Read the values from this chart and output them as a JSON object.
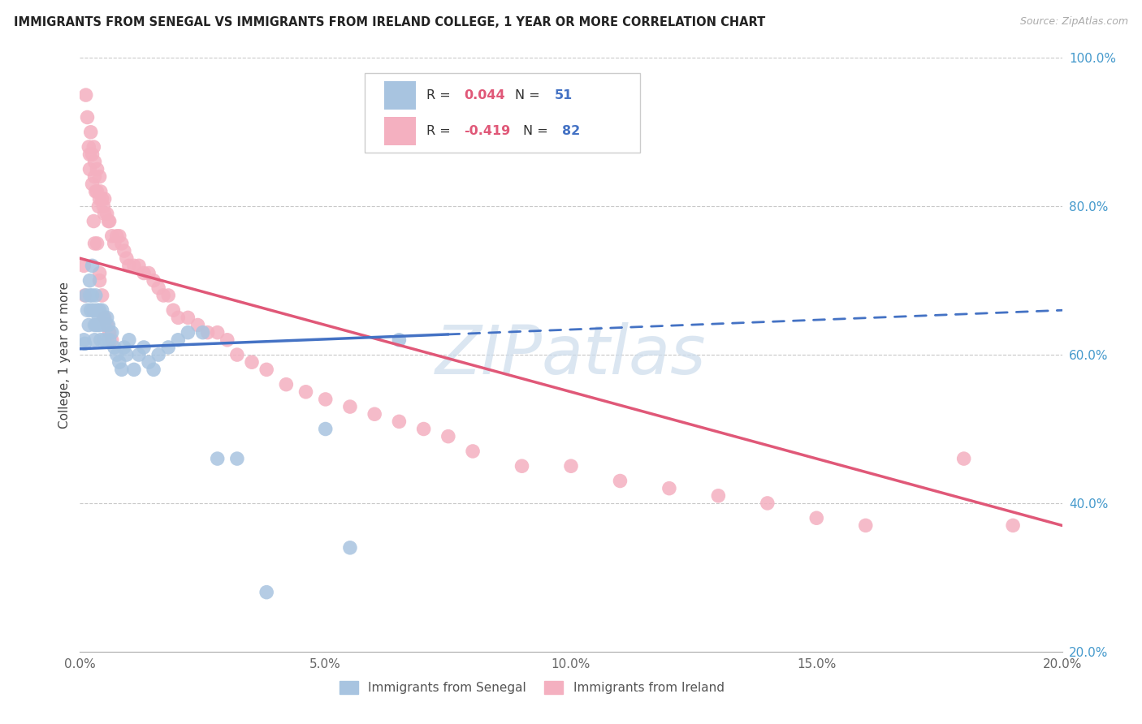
{
  "title": "IMMIGRANTS FROM SENEGAL VS IMMIGRANTS FROM IRELAND COLLEGE, 1 YEAR OR MORE CORRELATION CHART",
  "source": "Source: ZipAtlas.com",
  "ylabel": "College, 1 year or more",
  "xmin": 0.0,
  "xmax": 0.2,
  "ymin": 0.2,
  "ymax": 1.0,
  "x_ticks": [
    0.0,
    0.025,
    0.05,
    0.075,
    0.1,
    0.125,
    0.15,
    0.175,
    0.2
  ],
  "x_tick_labels": [
    "0.0%",
    "",
    "5.0%",
    "",
    "10.0%",
    "",
    "15.0%",
    "",
    "20.0%"
  ],
  "y_ticks_right": [
    0.2,
    0.4,
    0.6,
    0.8,
    1.0
  ],
  "y_tick_labels_right": [
    "20.0%",
    "40.0%",
    "60.0%",
    "80.0%",
    "100.0%"
  ],
  "legend_bottom_senegal": "Immigrants from Senegal",
  "legend_bottom_ireland": "Immigrants from Ireland",
  "senegal_color": "#a8c4e0",
  "ireland_color": "#f4b0c0",
  "senegal_line_color": "#4472c4",
  "ireland_line_color": "#e05878",
  "r_value_color": "#e05878",
  "n_value_color": "#4472c4",
  "watermark": "ZIPatlas",
  "watermark_color": "#ccdcec",
  "senegal_R": 0.044,
  "senegal_N": 51,
  "ireland_R": -0.419,
  "ireland_N": 82,
  "senegal_x": [
    0.0008,
    0.001,
    0.0012,
    0.0015,
    0.0018,
    0.002,
    0.002,
    0.0022,
    0.0025,
    0.0025,
    0.0028,
    0.003,
    0.003,
    0.0032,
    0.0035,
    0.0035,
    0.0038,
    0.004,
    0.004,
    0.0042,
    0.0045,
    0.0048,
    0.005,
    0.005,
    0.0055,
    0.0058,
    0.006,
    0.0065,
    0.007,
    0.0075,
    0.008,
    0.0085,
    0.009,
    0.0095,
    0.01,
    0.011,
    0.012,
    0.013,
    0.014,
    0.015,
    0.016,
    0.018,
    0.02,
    0.022,
    0.025,
    0.028,
    0.032,
    0.038,
    0.05,
    0.055,
    0.065
  ],
  "senegal_y": [
    0.62,
    0.615,
    0.68,
    0.66,
    0.64,
    0.7,
    0.68,
    0.66,
    0.72,
    0.68,
    0.66,
    0.64,
    0.62,
    0.68,
    0.66,
    0.64,
    0.65,
    0.66,
    0.64,
    0.62,
    0.66,
    0.65,
    0.64,
    0.62,
    0.65,
    0.64,
    0.62,
    0.63,
    0.61,
    0.6,
    0.59,
    0.58,
    0.61,
    0.6,
    0.62,
    0.58,
    0.6,
    0.61,
    0.59,
    0.58,
    0.6,
    0.61,
    0.62,
    0.63,
    0.63,
    0.46,
    0.46,
    0.28,
    0.5,
    0.34,
    0.62
  ],
  "ireland_x": [
    0.0008,
    0.001,
    0.0012,
    0.0015,
    0.0018,
    0.002,
    0.002,
    0.0022,
    0.0025,
    0.0025,
    0.0028,
    0.003,
    0.003,
    0.0032,
    0.0035,
    0.0035,
    0.0038,
    0.004,
    0.004,
    0.0042,
    0.0045,
    0.0048,
    0.005,
    0.005,
    0.0055,
    0.0058,
    0.006,
    0.0065,
    0.007,
    0.0075,
    0.008,
    0.0085,
    0.009,
    0.0095,
    0.01,
    0.011,
    0.012,
    0.013,
    0.014,
    0.015,
    0.016,
    0.017,
    0.018,
    0.019,
    0.02,
    0.022,
    0.024,
    0.026,
    0.028,
    0.03,
    0.032,
    0.035,
    0.038,
    0.042,
    0.046,
    0.05,
    0.055,
    0.06,
    0.065,
    0.07,
    0.075,
    0.08,
    0.09,
    0.1,
    0.11,
    0.12,
    0.13,
    0.14,
    0.15,
    0.16,
    0.0028,
    0.003,
    0.0035,
    0.004,
    0.004,
    0.0045,
    0.005,
    0.0055,
    0.006,
    0.0065,
    0.18,
    0.19
  ],
  "ireland_y": [
    0.72,
    0.68,
    0.95,
    0.92,
    0.88,
    0.87,
    0.85,
    0.9,
    0.87,
    0.83,
    0.88,
    0.86,
    0.84,
    0.82,
    0.85,
    0.82,
    0.8,
    0.84,
    0.81,
    0.82,
    0.81,
    0.8,
    0.81,
    0.79,
    0.79,
    0.78,
    0.78,
    0.76,
    0.75,
    0.76,
    0.76,
    0.75,
    0.74,
    0.73,
    0.72,
    0.72,
    0.72,
    0.71,
    0.71,
    0.7,
    0.69,
    0.68,
    0.68,
    0.66,
    0.65,
    0.65,
    0.64,
    0.63,
    0.63,
    0.62,
    0.6,
    0.59,
    0.58,
    0.56,
    0.55,
    0.54,
    0.53,
    0.52,
    0.51,
    0.5,
    0.49,
    0.47,
    0.45,
    0.45,
    0.43,
    0.42,
    0.41,
    0.4,
    0.38,
    0.37,
    0.78,
    0.75,
    0.75,
    0.71,
    0.7,
    0.68,
    0.65,
    0.64,
    0.63,
    0.62,
    0.46,
    0.37
  ],
  "senegal_trend_x": [
    0.0,
    0.2
  ],
  "senegal_trend_y": [
    0.608,
    0.66
  ],
  "ireland_trend_x": [
    0.0,
    0.2
  ],
  "ireland_trend_y": [
    0.73,
    0.37
  ]
}
